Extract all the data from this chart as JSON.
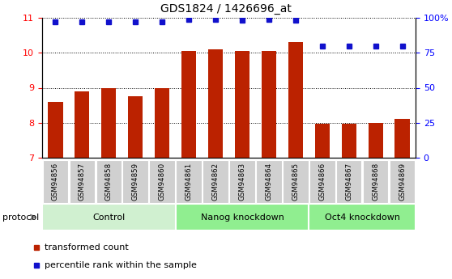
{
  "title": "GDS1824 / 1426696_at",
  "samples": [
    "GSM94856",
    "GSM94857",
    "GSM94858",
    "GSM94859",
    "GSM94860",
    "GSM94861",
    "GSM94862",
    "GSM94863",
    "GSM94864",
    "GSM94865",
    "GSM94866",
    "GSM94867",
    "GSM94868",
    "GSM94869"
  ],
  "transformed_count": [
    8.6,
    8.9,
    9.0,
    8.75,
    9.0,
    10.05,
    10.1,
    10.05,
    10.05,
    10.3,
    7.98,
    7.98,
    8.0,
    8.1
  ],
  "percentile_rank": [
    97,
    97,
    97,
    97,
    97,
    99,
    99,
    98,
    99,
    98,
    80,
    80,
    80,
    80
  ],
  "group_starts": [
    0,
    5,
    10
  ],
  "group_ends": [
    5,
    10,
    14
  ],
  "group_labels": [
    "Control",
    "Nanog knockdown",
    "Oct4 knockdown"
  ],
  "group_colors": [
    "#d0f0d0",
    "#90ee90",
    "#90ee90"
  ],
  "ylim_left": [
    7,
    11
  ],
  "ylim_right": [
    0,
    100
  ],
  "yticks_left": [
    7,
    8,
    9,
    10,
    11
  ],
  "yticks_right": [
    0,
    25,
    50,
    75,
    100
  ],
  "yticklabels_right": [
    "0",
    "25",
    "50",
    "75",
    "100%"
  ],
  "bar_color": "#bb2200",
  "dot_color": "#1111cc",
  "bar_width": 0.55,
  "protocol_label": "protocol",
  "legend_items": [
    {
      "label": "transformed count",
      "color": "#bb2200"
    },
    {
      "label": "percentile rank within the sample",
      "color": "#1111cc"
    }
  ],
  "sample_box_color": "#d0d0d0",
  "group_boundary_color": "#ffffff"
}
